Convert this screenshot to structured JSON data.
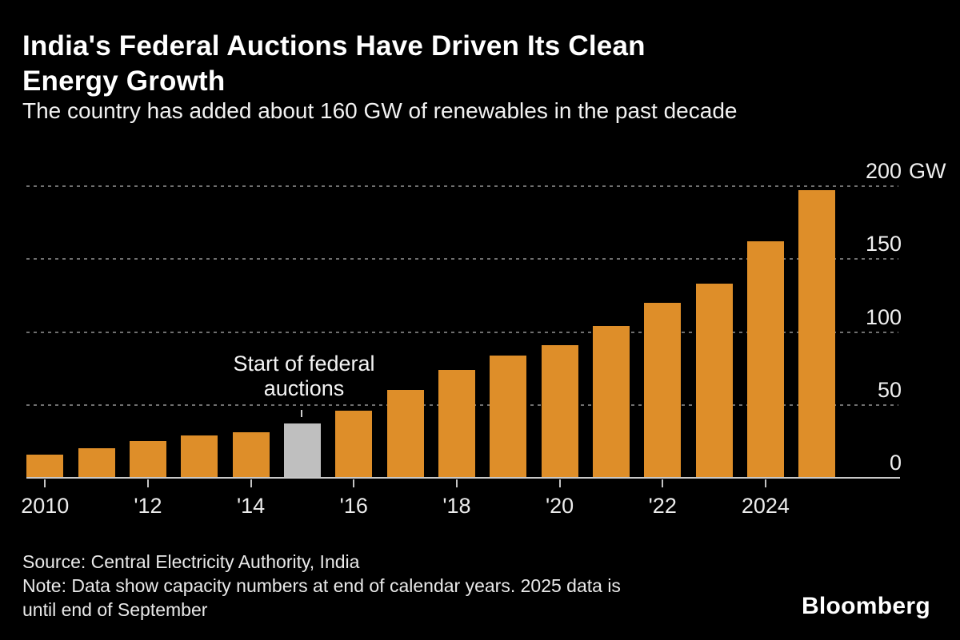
{
  "header": {
    "title_lines": [
      "India's Federal Auctions Have Driven Its Clean",
      "Energy Growth"
    ],
    "subtitle": "The country has added about 160 GW of renewables in the past decade"
  },
  "chart_data": {
    "type": "bar",
    "title": "India's Federal Auctions Have Driven Its Clean Energy Growth",
    "subtitle": "The country has added about 160 GW of renewables in the past decade",
    "unit": "GW",
    "categories": [
      2010,
      2011,
      2012,
      2013,
      2014,
      2015,
      2016,
      2017,
      2018,
      2019,
      2020,
      2021,
      2022,
      2023,
      2024,
      2025
    ],
    "values": [
      16,
      20,
      25,
      29,
      31,
      37,
      46,
      60,
      74,
      84,
      91,
      104,
      120,
      133,
      162,
      197
    ],
    "bar_color": "#de8e29",
    "highlight_index": 5,
    "highlight_color": "#bfbfbf",
    "ylim": [
      0,
      200
    ],
    "grid": "dotted horizontal",
    "legend": "none",
    "yticks": [
      {
        "label": "200",
        "unit": " GW",
        "value": 200
      },
      {
        "label": "150",
        "unit": "",
        "value": 150
      },
      {
        "label": "100",
        "unit": "",
        "value": 100
      },
      {
        "label": "50",
        "unit": "",
        "value": 50
      },
      {
        "label": "0",
        "unit": "",
        "value": 0
      }
    ],
    "xticks": [
      {
        "label": "2010",
        "index": 0
      },
      {
        "label": "'12",
        "index": 2
      },
      {
        "label": "'14",
        "index": 4
      },
      {
        "label": "'16",
        "index": 6
      },
      {
        "label": "'18",
        "index": 8
      },
      {
        "label": "'20",
        "index": 10
      },
      {
        "label": "'22",
        "index": 12
      },
      {
        "label": "2024",
        "index": 14
      }
    ],
    "annotation": {
      "lines": [
        "Start of federal",
        "auctions"
      ],
      "target_year": 2015
    }
  },
  "footer": {
    "source": "Source: Central Electricity Authority, India",
    "note_lines": [
      "Note: Data show capacity numbers at end of calendar years. 2025 data is",
      "until end of September"
    ],
    "brand": "Bloomberg"
  }
}
